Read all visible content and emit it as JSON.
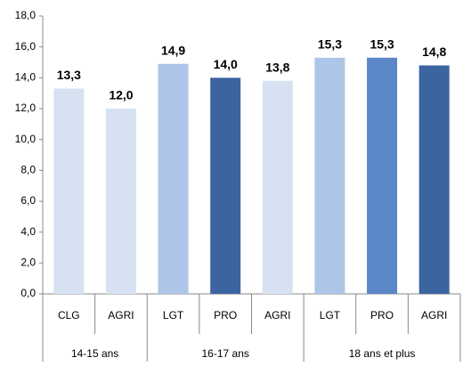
{
  "chart_data": {
    "type": "bar",
    "groups": [
      {
        "name": "14-15 ans",
        "categories": [
          "CLG",
          "AGRI"
        ],
        "values": [
          13.3,
          12.0
        ],
        "value_labels": [
          "13,3",
          "12,0"
        ],
        "colors": [
          "#d6e2f2",
          "#d6e2f2"
        ]
      },
      {
        "name": "16-17 ans",
        "categories": [
          "LGT",
          "PRO",
          "AGRI"
        ],
        "values": [
          14.9,
          14.0,
          13.8
        ],
        "value_labels": [
          "14,9",
          "14,0",
          "13,8"
        ],
        "colors": [
          "#adc5e6",
          "#3b64a0",
          "#d6e2f2"
        ]
      },
      {
        "name": "18 ans et plus",
        "categories": [
          "LGT",
          "PRO",
          "AGRI"
        ],
        "values": [
          15.3,
          15.3,
          14.8
        ],
        "value_labels": [
          "15,3",
          "15,3",
          "14,8"
        ],
        "colors": [
          "#adc5e6",
          "#5b87c8",
          "#3b64a0"
        ]
      }
    ],
    "ylim": [
      0,
      18
    ],
    "yticks": [
      {
        "value": 0,
        "label": "0,0"
      },
      {
        "value": 2,
        "label": "2,0"
      },
      {
        "value": 4,
        "label": "4,0"
      },
      {
        "value": 6,
        "label": "6,0"
      },
      {
        "value": 8,
        "label": "8,0"
      },
      {
        "value": 10,
        "label": "10,0"
      },
      {
        "value": 12,
        "label": "12,0"
      },
      {
        "value": 14,
        "label": "14,0"
      },
      {
        "value": 16,
        "label": "16,0"
      },
      {
        "value": 18,
        "label": "18,0"
      }
    ],
    "grid": false
  }
}
